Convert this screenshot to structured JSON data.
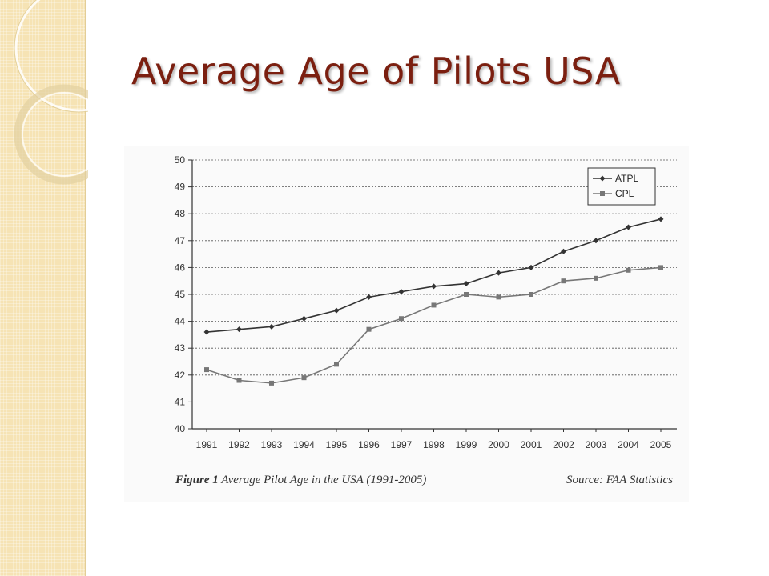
{
  "slide": {
    "title": "Average Age of Pilots USA"
  },
  "figure": {
    "caption_label": "Figure 1",
    "caption_text": "Average Pilot Age in the USA (1991-2005)",
    "source": "Source: FAA Statistics"
  },
  "colors": {
    "title": "#7b1f10",
    "band": "#f6e3b4",
    "atpl": "#333333",
    "cpl": "#777777"
  },
  "chart_data": {
    "type": "line",
    "title": "",
    "xlabel": "",
    "ylabel": "",
    "categories": [
      "1991",
      "1992",
      "1993",
      "1994",
      "1995",
      "1996",
      "1997",
      "1998",
      "1999",
      "2000",
      "2001",
      "2002",
      "2003",
      "2004",
      "2005"
    ],
    "ylim": [
      40,
      50
    ],
    "yticks": [
      40,
      41,
      42,
      43,
      44,
      45,
      46,
      47,
      48,
      49,
      50
    ],
    "grid": true,
    "legend": "top-right",
    "series": [
      {
        "name": "ATPL",
        "marker": "diamond",
        "values": [
          43.6,
          43.7,
          43.8,
          44.1,
          44.4,
          44.9,
          45.1,
          45.3,
          45.4,
          45.8,
          46.0,
          46.6,
          47.0,
          47.5,
          47.8
        ]
      },
      {
        "name": "CPL",
        "marker": "square",
        "values": [
          42.2,
          41.8,
          41.7,
          41.9,
          42.4,
          43.7,
          44.1,
          44.6,
          45.0,
          44.9,
          45.0,
          45.5,
          45.6,
          45.9,
          46.0
        ]
      }
    ]
  }
}
